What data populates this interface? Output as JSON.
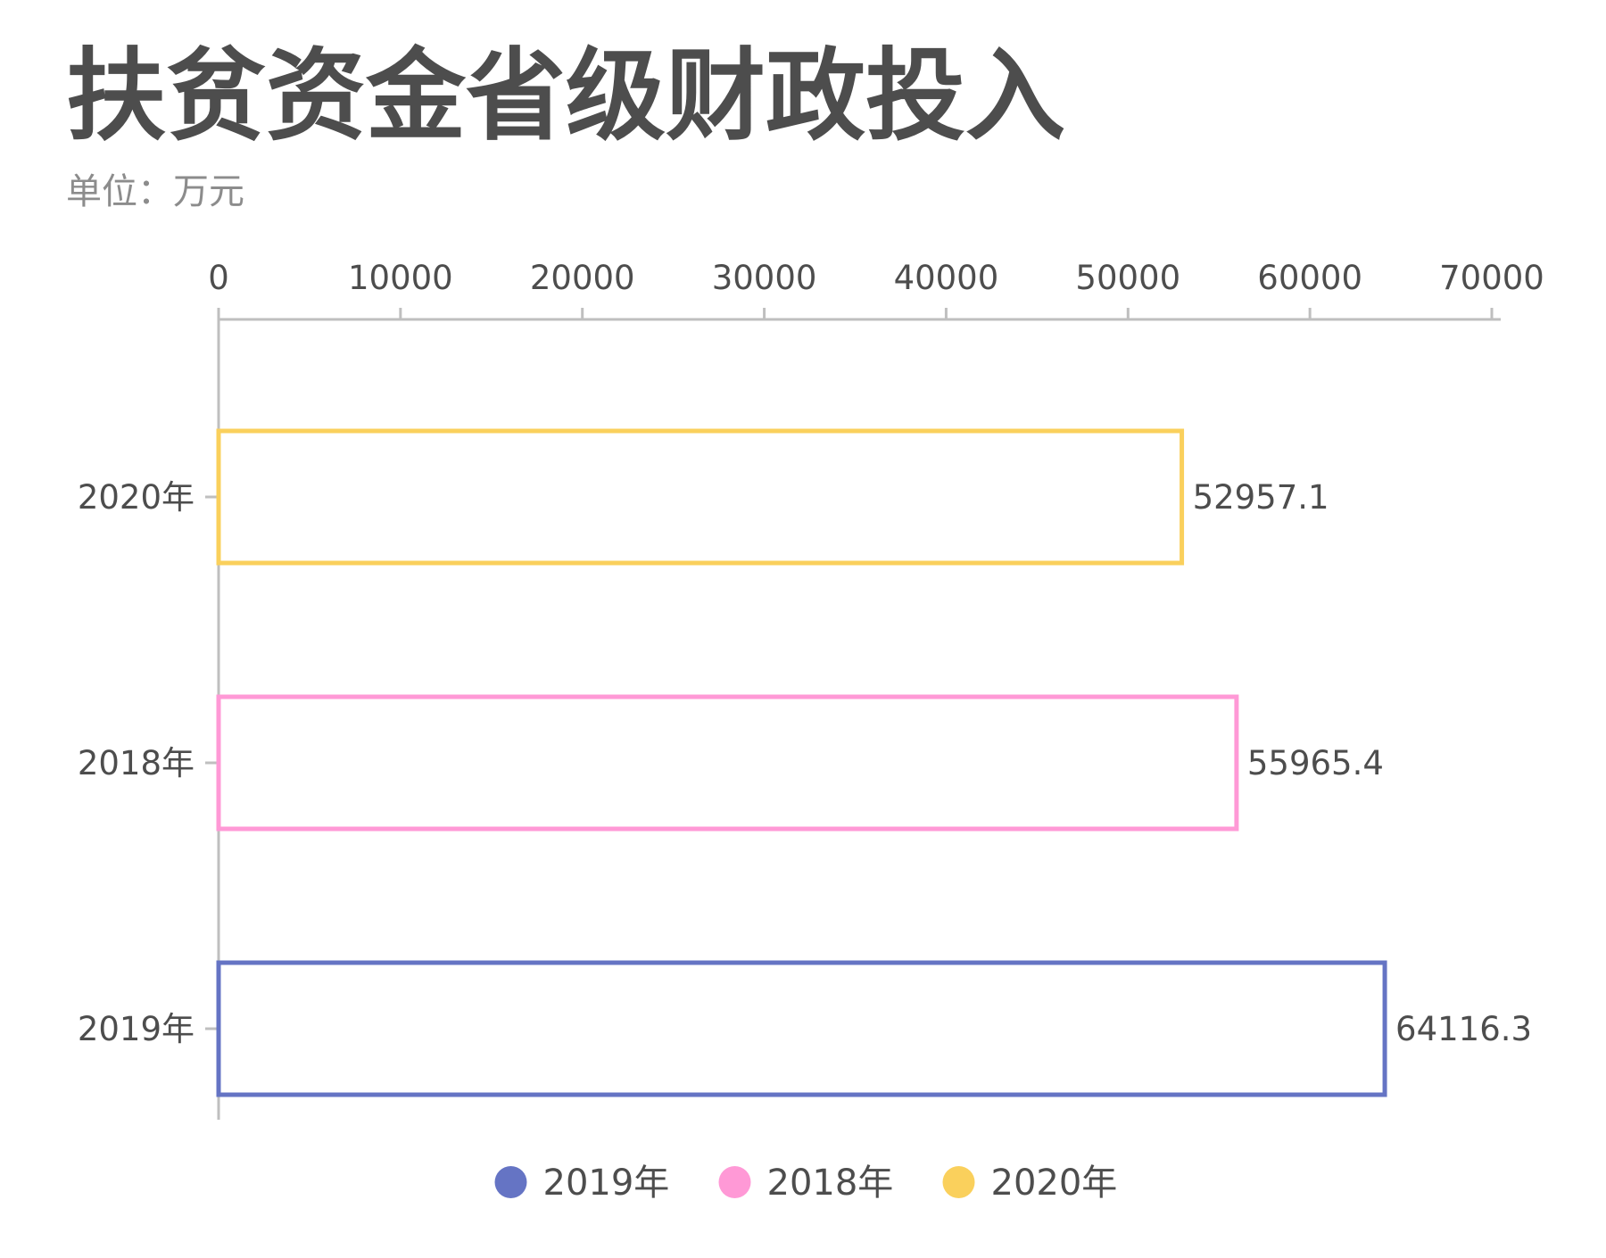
{
  "chart_data": {
    "type": "bar",
    "orientation": "horizontal",
    "title": "扶贫资金省级财政投入",
    "subtitle": "单位：万元",
    "xlim": [
      0,
      70000
    ],
    "x_ticks": [
      "0",
      "10000",
      "20000",
      "30000",
      "40000",
      "50000",
      "60000",
      "70000"
    ],
    "x_axis_position": "top",
    "grid": false,
    "legend_position": "bottom",
    "bar_style": "outline",
    "categories": [
      "2020年",
      "2018年",
      "2019年"
    ],
    "values": [
      52957.1,
      55965.4,
      64116.3
    ],
    "value_labels": [
      "52957.1",
      "55965.4",
      "64116.3"
    ],
    "colors": [
      "#fad05c",
      "#ff99d6",
      "#6574c4"
    ],
    "legend": [
      {
        "label": "2019年",
        "color": "#6574c4"
      },
      {
        "label": "2018年",
        "color": "#ff99d6"
      },
      {
        "label": "2020年",
        "color": "#fad05c"
      }
    ]
  }
}
